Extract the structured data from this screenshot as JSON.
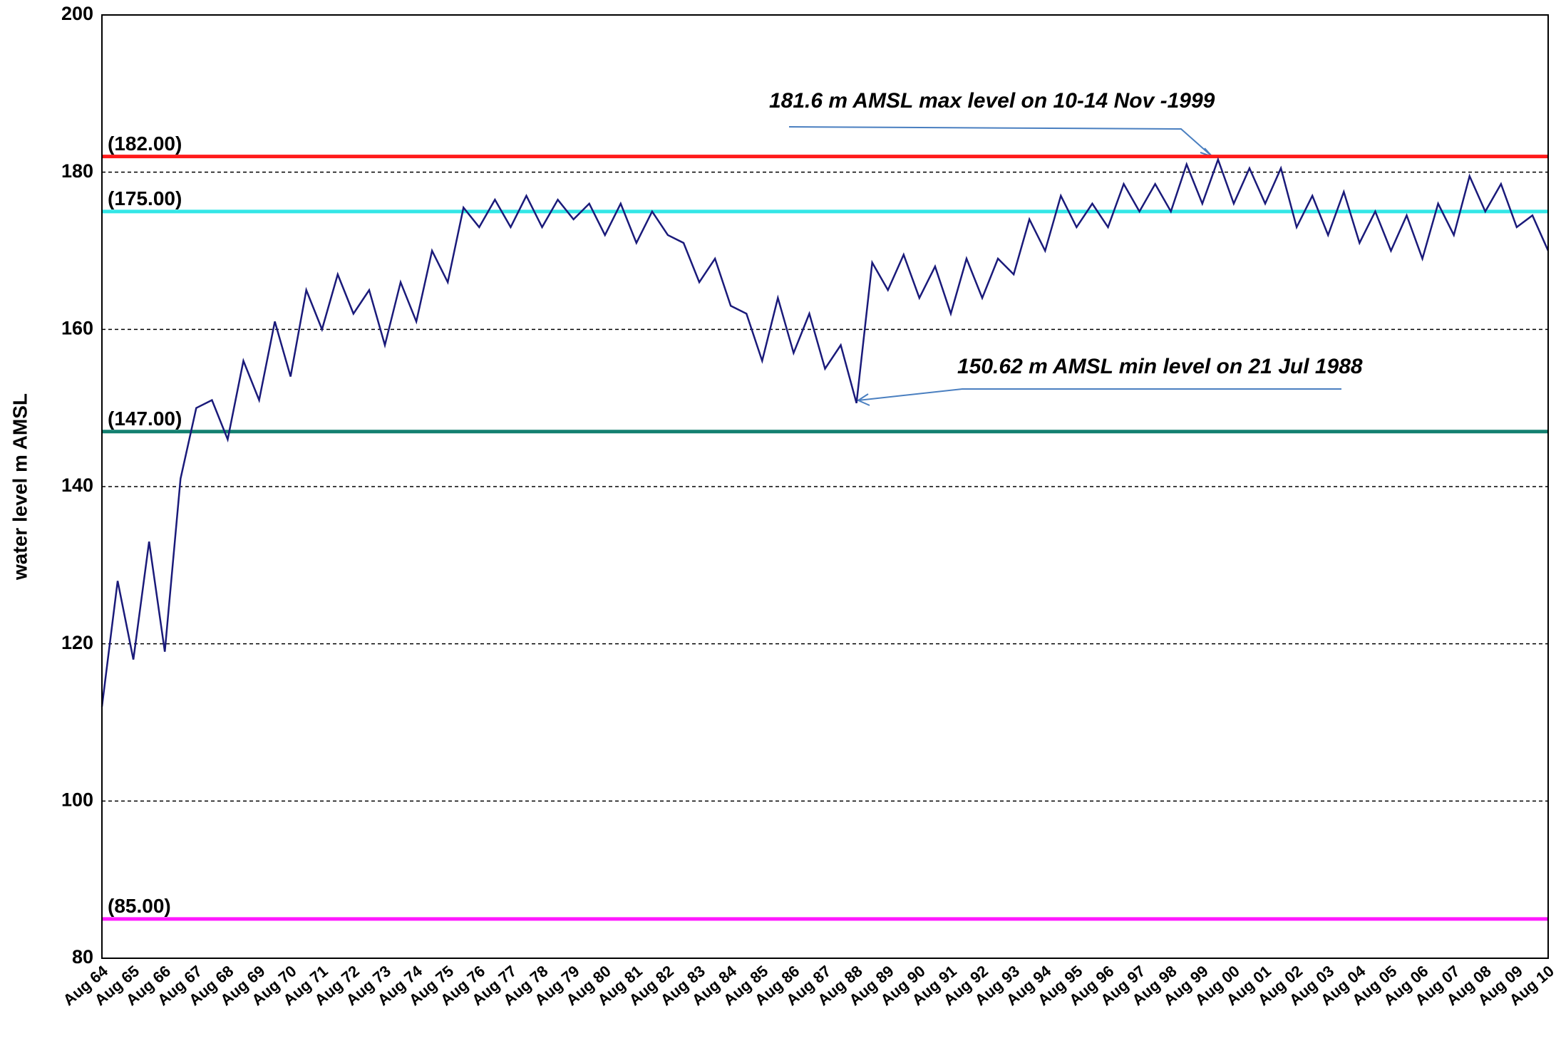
{
  "chart_data": {
    "type": "line",
    "ylabel": "water level  m AMSL",
    "categories": [
      "Aug 64",
      null,
      "Aug 65",
      null,
      "Aug 66",
      null,
      "Aug 67",
      null,
      "Aug 68",
      null,
      "Aug 69",
      null,
      "Aug 70",
      null,
      "Aug 71",
      null,
      "Aug 72",
      null,
      "Aug 73",
      null,
      "Aug 74",
      null,
      "Aug 75",
      null,
      "Aug 76",
      null,
      "Aug 77",
      null,
      "Aug 78",
      null,
      "Aug 79",
      null,
      "Aug 80",
      null,
      "Aug 81",
      null,
      "Aug 82",
      null,
      "Aug 83",
      null,
      "Aug 84",
      null,
      "Aug 85",
      null,
      "Aug 86",
      null,
      "Aug 87",
      null,
      "Aug 88",
      null,
      "Aug 89",
      null,
      "Aug 90",
      null,
      "Aug 91",
      null,
      "Aug 92",
      null,
      "Aug 93",
      null,
      "Aug 94",
      null,
      "Aug 95",
      null,
      "Aug 96",
      null,
      "Aug 97",
      null,
      "Aug 98",
      null,
      "Aug 99",
      null,
      "Aug 00",
      null,
      "Aug 01",
      null,
      "Aug 02",
      null,
      "Aug 03",
      null,
      "Aug 04",
      null,
      "Aug 05",
      null,
      "Aug 06",
      null,
      "Aug 07",
      null,
      "Aug 08",
      null,
      "Aug 09",
      null,
      "Aug 10"
    ],
    "values": [
      112,
      128,
      118,
      133,
      119,
      141,
      150,
      151,
      146,
      156,
      151,
      161,
      154,
      165,
      160,
      167,
      162,
      165,
      158,
      166,
      161,
      170,
      166,
      175.5,
      173,
      176.5,
      173,
      177,
      173,
      176.5,
      174,
      176,
      172,
      176,
      171,
      175,
      172,
      171,
      166,
      169,
      163,
      162,
      156,
      164,
      157,
      162,
      155,
      158,
      150.62,
      168.5,
      165,
      169.5,
      164,
      168,
      162,
      169,
      164,
      169,
      167,
      174,
      170,
      177,
      173,
      176,
      173,
      178.5,
      175,
      178.5,
      175,
      181,
      176,
      181.6,
      176,
      180.5,
      176,
      180.5,
      173,
      177,
      172,
      177.5,
      171,
      175,
      170,
      174.5,
      169,
      176,
      172,
      179.5,
      175,
      178.5,
      173,
      174.5,
      170
    ],
    "color": "#1a1a7a",
    "ylim": [
      80,
      200
    ],
    "yticks": [
      80,
      100,
      120,
      140,
      160,
      180,
      200
    ],
    "grid": true,
    "reference_lines": [
      {
        "value": 182,
        "label": "(182.00)",
        "color": "#ff1a1a"
      },
      {
        "value": 175,
        "label": "(175.00)",
        "color": "#33e6e6"
      },
      {
        "value": 147,
        "label": "(147.00)",
        "color": "#138070"
      },
      {
        "value": 85,
        "label": "(85.00)",
        "color": "#ff1aff"
      }
    ],
    "annotations": [
      "181.6  m AMSL max level on 10-14 Nov -1999",
      "150.62  m AMSL min level on 21 Jul 1988"
    ]
  }
}
